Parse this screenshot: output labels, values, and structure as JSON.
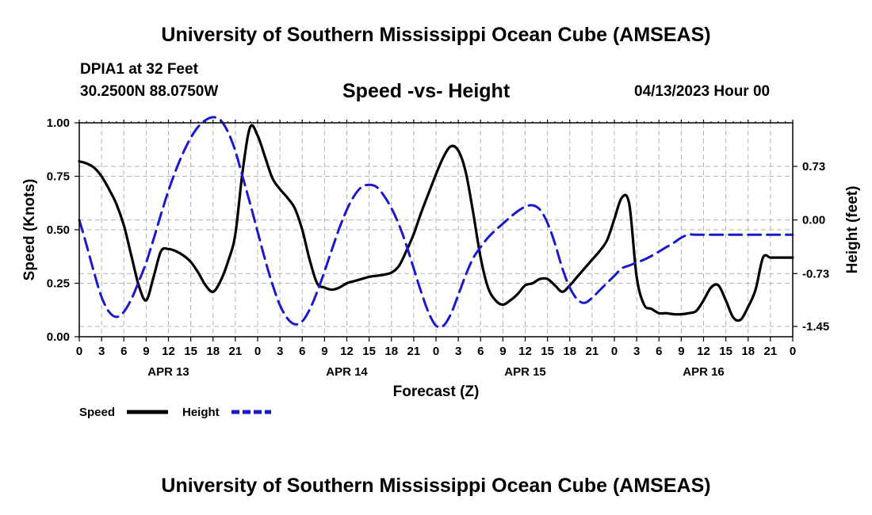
{
  "header": {
    "title": "University of Southern Mississippi Ocean Cube (AMSEAS)",
    "station": "DPIA1 at 32 Feet",
    "coords": "30.2500N  88.0750W",
    "chart_title": "Speed -vs- Height",
    "date": "04/13/2023 Hour 00"
  },
  "footer": {
    "title": "University of Southern Mississippi Ocean Cube (AMSEAS)"
  },
  "colors": {
    "speed": "#000000",
    "height": "#1a1acc",
    "grid": "#b4b4b4"
  },
  "chart_data": {
    "type": "line",
    "title": "Speed -vs- Height",
    "xlabel": "Forecast (Z)",
    "ylabel": "Speed (Knots)",
    "y2label": "Height (feet)",
    "xlim": [
      0,
      96
    ],
    "ylim": [
      0,
      1.0
    ],
    "y2lim": [
      -1.45,
      1.45
    ],
    "x_tick_labels": [
      "0",
      "3",
      "6",
      "9",
      "12",
      "15",
      "18",
      "21",
      "0",
      "3",
      "6",
      "9",
      "12",
      "15",
      "18",
      "21",
      "0",
      "3",
      "6",
      "9",
      "12",
      "15",
      "18",
      "21",
      "0",
      "3",
      "6",
      "9",
      "12",
      "15",
      "18",
      "21",
      "0"
    ],
    "day_labels": [
      {
        "label": "APR 13",
        "hour": 12
      },
      {
        "label": "APR 14",
        "hour": 36
      },
      {
        "label": "APR 15",
        "hour": 60
      },
      {
        "label": "APR 16",
        "hour": 84
      }
    ],
    "y_ticks": [
      "0.00",
      "0.25",
      "0.50",
      "0.75",
      "1.00"
    ],
    "y2_ticks": [
      "-1.45",
      "-0.73",
      "0.00",
      "0.73"
    ],
    "series": [
      {
        "name": "Speed",
        "axis": "left",
        "style": "solid",
        "x": [
          0,
          1,
          2,
          3,
          4,
          5,
          6,
          7,
          8,
          9,
          10,
          11,
          12,
          13,
          14,
          15,
          16,
          17,
          18,
          19,
          20,
          21,
          22,
          23,
          24,
          25,
          26,
          27,
          28,
          29,
          30,
          31,
          32,
          33,
          34,
          35,
          36,
          37,
          38,
          39,
          40,
          41,
          42,
          43,
          44,
          45,
          46,
          47,
          48,
          49,
          50,
          51,
          52,
          53,
          54,
          55,
          56,
          57,
          58,
          59,
          60,
          61,
          62,
          63,
          64,
          65,
          66,
          67,
          68,
          69,
          70,
          71,
          72,
          73,
          74,
          75,
          76,
          77,
          78,
          79,
          80,
          81,
          82,
          83,
          84,
          85,
          86,
          87,
          88,
          89,
          90,
          91,
          92,
          93,
          94,
          95,
          96
        ],
        "values": [
          0.82,
          0.81,
          0.79,
          0.75,
          0.69,
          0.62,
          0.52,
          0.38,
          0.24,
          0.17,
          0.28,
          0.4,
          0.41,
          0.4,
          0.38,
          0.35,
          0.3,
          0.24,
          0.21,
          0.26,
          0.35,
          0.48,
          0.78,
          0.98,
          0.94,
          0.84,
          0.74,
          0.69,
          0.65,
          0.6,
          0.5,
          0.36,
          0.25,
          0.23,
          0.22,
          0.23,
          0.25,
          0.26,
          0.27,
          0.28,
          0.285,
          0.29,
          0.3,
          0.33,
          0.4,
          0.48,
          0.58,
          0.67,
          0.76,
          0.84,
          0.89,
          0.87,
          0.77,
          0.58,
          0.37,
          0.23,
          0.17,
          0.15,
          0.17,
          0.2,
          0.24,
          0.25,
          0.27,
          0.27,
          0.24,
          0.21,
          0.24,
          0.28,
          0.32,
          0.36,
          0.4,
          0.45,
          0.55,
          0.65,
          0.62,
          0.28,
          0.15,
          0.13,
          0.11,
          0.11,
          0.105,
          0.105,
          0.11,
          0.12,
          0.17,
          0.23,
          0.24,
          0.17,
          0.09,
          0.08,
          0.14,
          0.22,
          0.37,
          0.37,
          0.37,
          0.37,
          0.37
        ]
      },
      {
        "name": "Height",
        "axis": "right",
        "style": "dashed",
        "x": [
          0,
          1,
          2,
          3,
          4,
          5,
          6,
          7,
          8,
          9,
          10,
          11,
          12,
          13,
          14,
          15,
          16,
          17,
          18,
          19,
          20,
          21,
          22,
          23,
          24,
          25,
          26,
          27,
          28,
          29,
          30,
          31,
          32,
          33,
          34,
          35,
          36,
          37,
          38,
          39,
          40,
          41,
          42,
          43,
          44,
          45,
          46,
          47,
          48,
          49,
          50,
          51,
          52,
          53,
          54,
          55,
          56,
          57,
          58,
          59,
          60,
          61,
          62,
          63,
          64,
          65,
          66,
          67,
          68,
          69,
          70,
          71,
          72,
          73,
          74,
          75,
          76,
          77,
          78,
          79,
          80,
          81,
          82,
          83,
          84,
          85,
          86,
          87,
          88,
          89,
          90,
          91,
          92,
          93,
          94,
          95,
          96
        ],
        "values": [
          0.0,
          -0.35,
          -0.72,
          -1.05,
          -1.25,
          -1.32,
          -1.25,
          -1.08,
          -0.84,
          -0.58,
          -0.26,
          0.08,
          0.4,
          0.68,
          0.92,
          1.12,
          1.27,
          1.36,
          1.4,
          1.36,
          1.2,
          0.94,
          0.58,
          0.22,
          -0.16,
          -0.54,
          -0.88,
          -1.16,
          -1.34,
          -1.42,
          -1.38,
          -1.22,
          -0.98,
          -0.7,
          -0.4,
          -0.11,
          0.14,
          0.33,
          0.45,
          0.48,
          0.45,
          0.33,
          0.16,
          -0.06,
          -0.34,
          -0.66,
          -0.98,
          -1.26,
          -1.44,
          -1.44,
          -1.28,
          -1.02,
          -0.75,
          -0.52,
          -0.37,
          -0.24,
          -0.14,
          -0.05,
          0.04,
          0.12,
          0.18,
          0.2,
          0.14,
          -0.04,
          -0.32,
          -0.66,
          -0.92,
          -1.08,
          -1.13,
          -1.06,
          -0.96,
          -0.86,
          -0.76,
          -0.66,
          -0.62,
          -0.58,
          -0.54,
          -0.49,
          -0.43,
          -0.37,
          -0.31,
          -0.24,
          -0.2,
          -0.2,
          -0.2,
          -0.2,
          -0.2,
          -0.2,
          -0.2,
          -0.2,
          -0.2,
          -0.2,
          -0.2,
          -0.2,
          -0.2,
          -0.2,
          -0.2
        ]
      }
    ],
    "legend": [
      {
        "label": "Speed",
        "style": "solid"
      },
      {
        "label": "Height",
        "style": "dashed"
      }
    ]
  }
}
